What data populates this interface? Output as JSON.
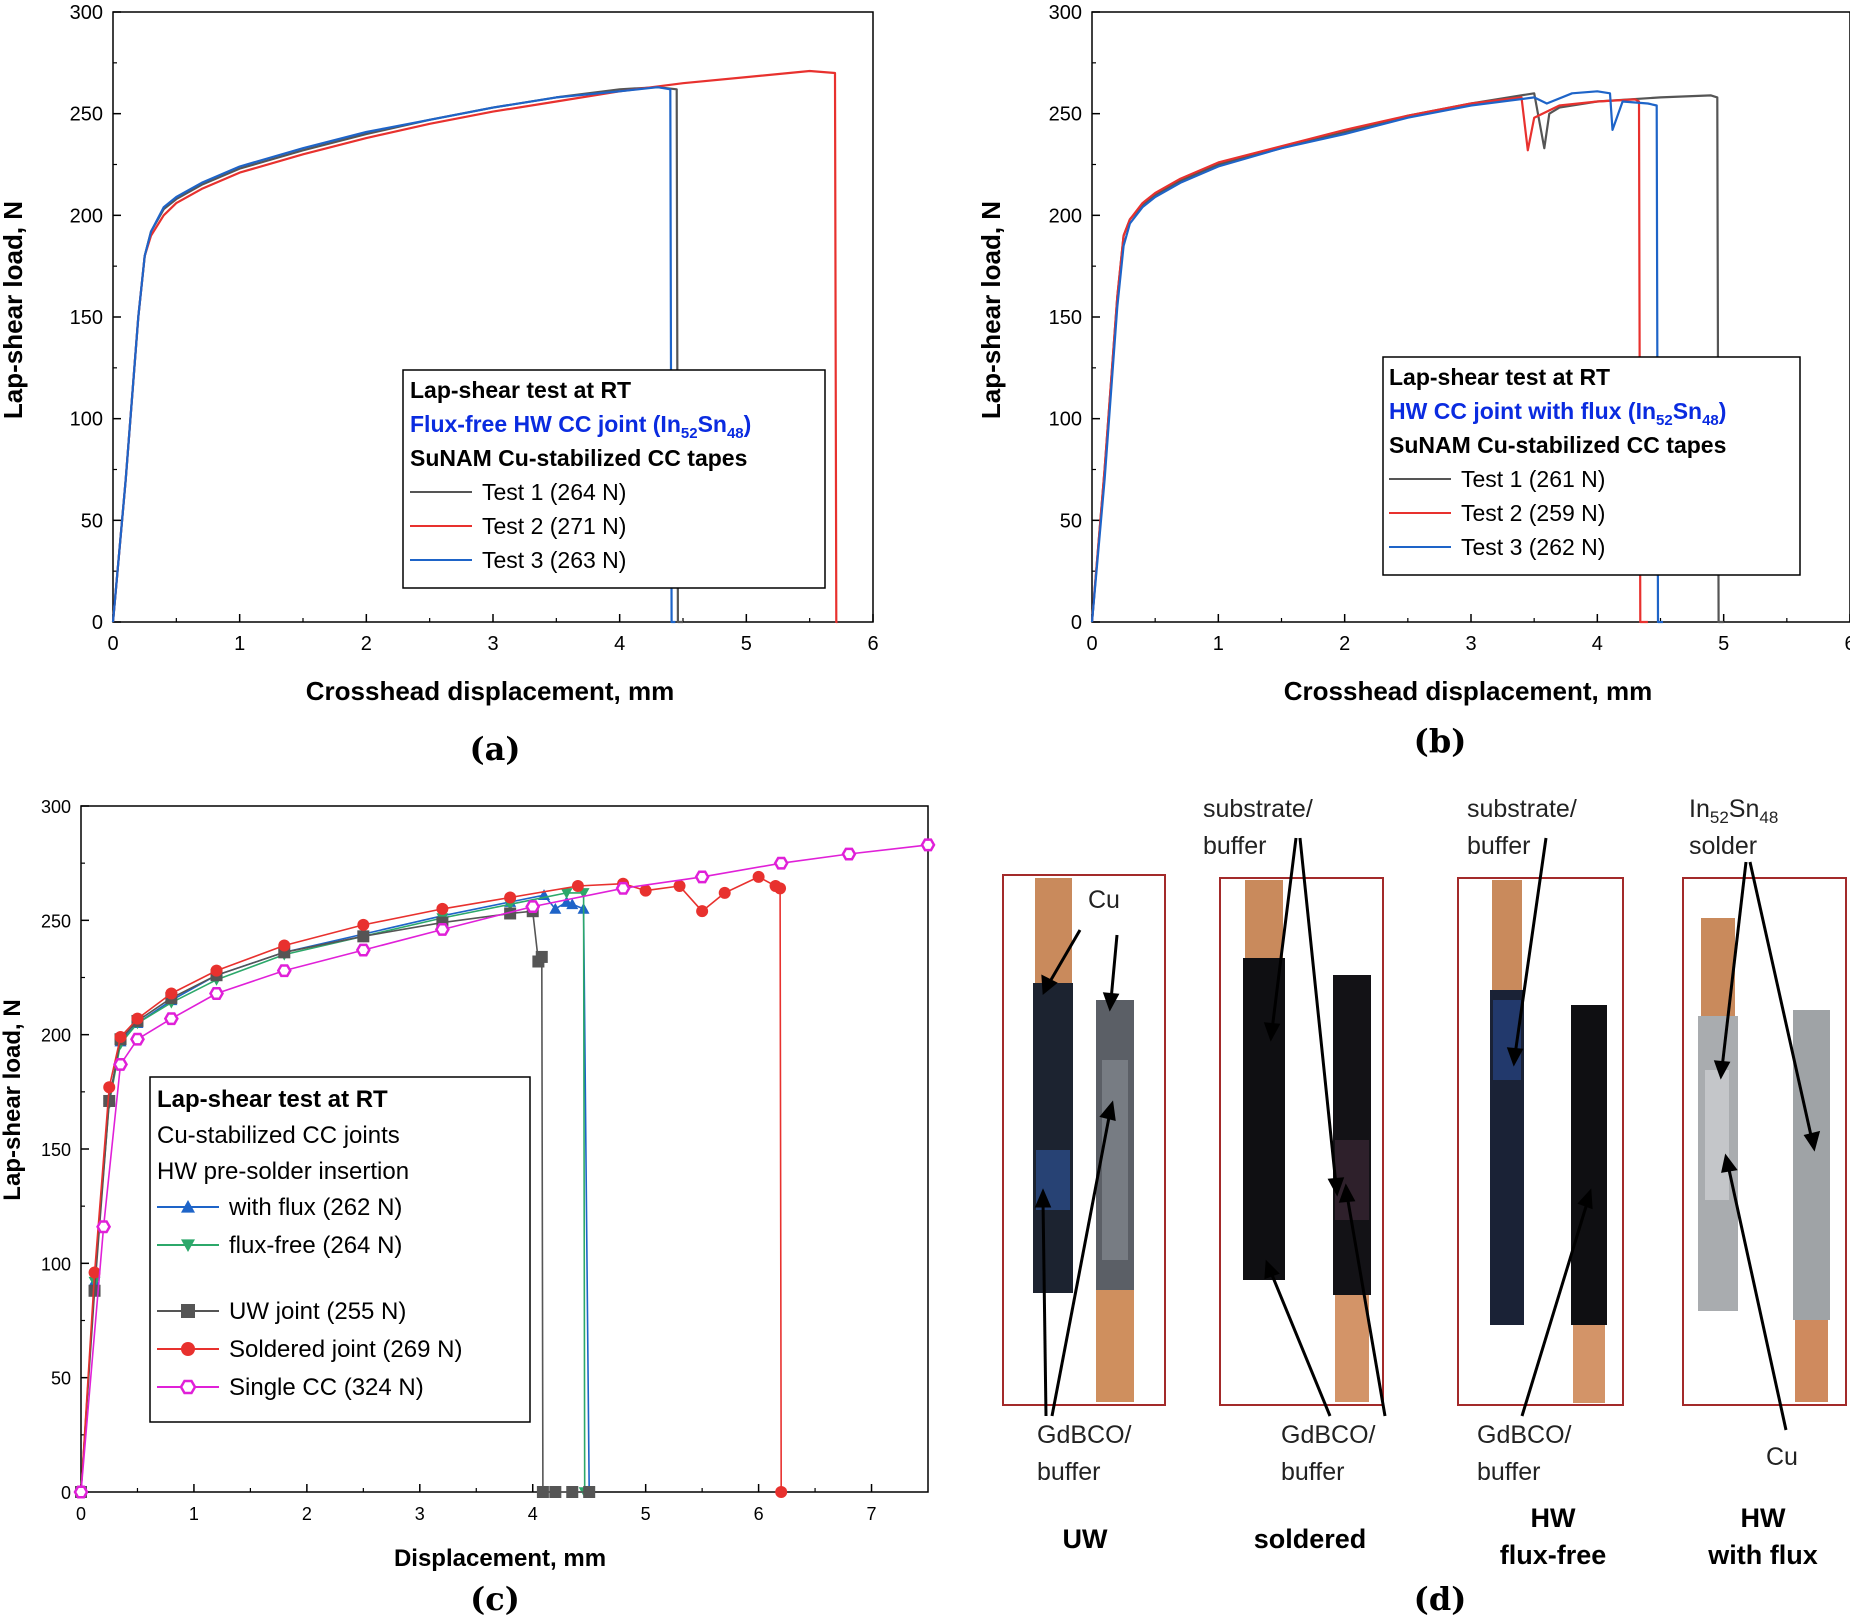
{
  "chart_data": [
    {
      "id": "a",
      "type": "line",
      "panel_label": "(a)",
      "xlabel": "Crosshead displacement, mm",
      "ylabel": "Lap-shear load, N",
      "xlim": [
        0,
        6
      ],
      "ylim": [
        0,
        300
      ],
      "xticks": [
        0,
        1,
        2,
        3,
        4,
        5,
        6
      ],
      "yticks": [
        0,
        50,
        100,
        150,
        200,
        250,
        300
      ],
      "legend": {
        "lines": [
          "Lap-shear test at RT",
          "Flux-free HW CC joint (In",
          "52",
          "Sn",
          "48",
          ")",
          "SuNAM Cu-stabilized CC tapes"
        ],
        "title": "Lap-shear test at RT",
        "subtitle_main": "Flux-free HW CC joint (In",
        "sub1": "52",
        "mid": "Sn",
        "sub2": "48",
        "tail": ")",
        "subtitle2": "SuNAM Cu-stabilized CC tapes"
      },
      "series": [
        {
          "name": "Test 1 (264 N)",
          "color": "#555555",
          "x": [
            0,
            0.1,
            0.2,
            0.25,
            0.3,
            0.4,
            0.5,
            0.7,
            1,
            1.5,
            2,
            2.5,
            3,
            3.5,
            4,
            4.3,
            4.45,
            4.46,
            4.5
          ],
          "y": [
            0,
            70,
            150,
            180,
            192,
            203,
            208,
            215,
            223,
            232,
            240,
            247,
            253,
            258,
            262,
            263,
            262,
            0,
            0
          ]
        },
        {
          "name": "Test 2 (271 N)",
          "color": "#e8312e",
          "x": [
            0,
            0.1,
            0.2,
            0.25,
            0.3,
            0.4,
            0.5,
            0.7,
            1,
            1.5,
            2,
            2.5,
            3,
            3.5,
            4,
            4.5,
            5,
            5.5,
            5.7,
            5.71,
            5.72
          ],
          "y": [
            0,
            70,
            150,
            180,
            190,
            200,
            206,
            213,
            221,
            230,
            238,
            245,
            251,
            256,
            261,
            265,
            268,
            271,
            270,
            0,
            0
          ]
        },
        {
          "name": "Test 3 (263 N)",
          "color": "#1e64c8",
          "x": [
            0,
            0.1,
            0.2,
            0.25,
            0.3,
            0.4,
            0.5,
            0.7,
            1,
            1.5,
            2,
            2.5,
            3,
            3.5,
            4,
            4.3,
            4.4,
            4.41,
            4.44
          ],
          "y": [
            0,
            70,
            150,
            180,
            192,
            204,
            209,
            216,
            224,
            233,
            241,
            247,
            253,
            258,
            261,
            263,
            262,
            0,
            0
          ]
        }
      ]
    },
    {
      "id": "b",
      "type": "line",
      "panel_label": "(b)",
      "xlabel": "Crosshead displacement, mm",
      "ylabel": "Lap-shear load, N",
      "xlim": [
        0,
        6
      ],
      "ylim": [
        0,
        300
      ],
      "xticks": [
        0,
        1,
        2,
        3,
        4,
        5,
        6
      ],
      "yticks": [
        0,
        50,
        100,
        150,
        200,
        250,
        300
      ],
      "legend": {
        "title": "Lap-shear test at RT",
        "subtitle_main": "HW CC joint with flux (In",
        "sub1": "52",
        "mid": "Sn",
        "sub2": "48",
        "tail": ")",
        "subtitle2": "SuNAM Cu-stabilized CC tapes"
      },
      "series": [
        {
          "name": "Test 1 (261 N)",
          "color": "#555555",
          "x": [
            0,
            0.1,
            0.2,
            0.25,
            0.3,
            0.4,
            0.5,
            0.7,
            1,
            1.5,
            2,
            2.5,
            3,
            3.5,
            3.58,
            3.62,
            3.7,
            4,
            4.5,
            4.9,
            4.95,
            4.96,
            5.0
          ],
          "y": [
            0,
            75,
            160,
            190,
            198,
            205,
            210,
            217,
            225,
            233,
            241,
            249,
            255,
            260,
            233,
            250,
            253,
            256,
            258,
            259,
            258,
            0,
            0
          ]
        },
        {
          "name": "Test 2 (259 N)",
          "color": "#e8312e",
          "x": [
            0,
            0.1,
            0.2,
            0.25,
            0.3,
            0.4,
            0.5,
            0.7,
            1,
            1.5,
            2,
            2.5,
            3,
            3.4,
            3.45,
            3.5,
            3.7,
            4,
            4.3,
            4.33,
            4.34,
            4.4
          ],
          "y": [
            0,
            75,
            160,
            190,
            198,
            206,
            211,
            218,
            226,
            234,
            242,
            249,
            255,
            258,
            232,
            248,
            254,
            256,
            257,
            256,
            0,
            0
          ]
        },
        {
          "name": "Test 3 (262 N)",
          "color": "#1e64c8",
          "x": [
            0,
            0.1,
            0.2,
            0.25,
            0.3,
            0.4,
            0.5,
            0.7,
            1,
            1.5,
            2,
            2.5,
            3,
            3.5,
            3.6,
            3.8,
            4,
            4.1,
            4.12,
            4.2,
            4.4,
            4.47,
            4.48,
            4.52
          ],
          "y": [
            0,
            70,
            155,
            185,
            196,
            204,
            209,
            216,
            224,
            233,
            240,
            248,
            254,
            258,
            255,
            260,
            261,
            260,
            242,
            256,
            255,
            254,
            0,
            0
          ]
        }
      ]
    },
    {
      "id": "c",
      "type": "line",
      "panel_label": "(c)",
      "xlabel": "Displacement, mm",
      "ylabel": "Lap-shear load, N",
      "xlim": [
        0,
        7.5
      ],
      "ylim": [
        0,
        300
      ],
      "xticks": [
        0,
        1,
        2,
        3,
        4,
        5,
        6,
        7
      ],
      "yticks": [
        0,
        50,
        100,
        150,
        200,
        250,
        300
      ],
      "legend": {
        "title": "Lap-shear test at RT",
        "line2": "Cu-stabilized CC joints",
        "line3": "HW pre-solder insertion"
      },
      "series": [
        {
          "name": "with flux (262 N)",
          "color": "#1e64c8",
          "marker": "triangle-up",
          "x": [
            0,
            0.12,
            0.25,
            0.35,
            0.5,
            0.8,
            1.2,
            1.8,
            2.5,
            3.2,
            3.8,
            4.1,
            4.2,
            4.3,
            4.35,
            4.45,
            4.5
          ],
          "y": [
            0,
            92,
            172,
            197,
            205,
            215,
            226,
            236,
            244,
            252,
            258,
            261,
            255,
            258,
            257,
            255,
            0
          ]
        },
        {
          "name": "flux-free (264 N)",
          "color": "#2ca86a",
          "marker": "triangle-down",
          "x": [
            0,
            0.12,
            0.25,
            0.35,
            0.5,
            0.8,
            1.2,
            1.8,
            2.5,
            3.2,
            3.8,
            4.3,
            4.45,
            4.46,
            4.5
          ],
          "y": [
            0,
            92,
            170,
            196,
            205,
            214,
            224,
            235,
            243,
            251,
            257,
            262,
            262,
            0,
            0
          ]
        },
        {
          "name": "UW joint (255 N)",
          "color": "#555555",
          "marker": "square",
          "x": [
            0,
            0.12,
            0.25,
            0.35,
            0.5,
            0.8,
            1.2,
            1.8,
            2.5,
            3.2,
            3.8,
            4.0,
            4.05,
            4.08,
            4.09,
            4.2,
            4.35,
            4.5
          ],
          "y": [
            0,
            88,
            171,
            198,
            206,
            216,
            226,
            236,
            243,
            249,
            253,
            254,
            232,
            234,
            0,
            0,
            0,
            0
          ]
        },
        {
          "name": "Soldered joint (269 N)",
          "color": "#e8312e",
          "marker": "circle",
          "x": [
            0,
            0.12,
            0.25,
            0.35,
            0.5,
            0.8,
            1.2,
            1.8,
            2.5,
            3.2,
            3.8,
            4.4,
            4.8,
            5.0,
            5.3,
            5.5,
            5.7,
            6.0,
            6.15,
            6.19,
            6.2
          ],
          "y": [
            0,
            96,
            177,
            199,
            207,
            218,
            228,
            239,
            248,
            255,
            260,
            265,
            266,
            263,
            265,
            254,
            262,
            269,
            265,
            264,
            0
          ]
        },
        {
          "name": "Single CC (324 N)",
          "color": "#e020d8",
          "marker": "open-hexagon",
          "x": [
            0,
            0.2,
            0.35,
            0.5,
            0.8,
            1.2,
            1.8,
            2.5,
            3.2,
            4,
            4.8,
            5.5,
            6.2,
            6.8,
            7.5
          ],
          "y": [
            0,
            116,
            187,
            198,
            207,
            218,
            228,
            237,
            246,
            256,
            264,
            269,
            275,
            279,
            283
          ]
        }
      ]
    }
  ],
  "photos": {
    "panel_label": "(d)",
    "callouts": {
      "cu_top": "Cu",
      "sub1_a": "substrate/",
      "sub1_b": "buffer",
      "sub2_a": "substrate/",
      "sub2_b": "buffer",
      "insn_a": "In",
      "insn_a_sub": "52",
      "insn_b": "Sn",
      "insn_b_sub": "48",
      "insn_c": "solder",
      "gd1_a": "GdBCO/",
      "gd1_b": "buffer",
      "gd2_a": "GdBCO/",
      "gd2_b": "buffer",
      "gd3_a": "GdBCO/",
      "gd3_b": "buffer",
      "cu_bottom": "Cu"
    },
    "captions": {
      "uw": "UW",
      "soldered": "soldered",
      "hw_ff_1": "HW",
      "hw_ff_2": "flux-free",
      "hw_wf_1": "HW",
      "hw_wf_2": "with flux"
    }
  }
}
